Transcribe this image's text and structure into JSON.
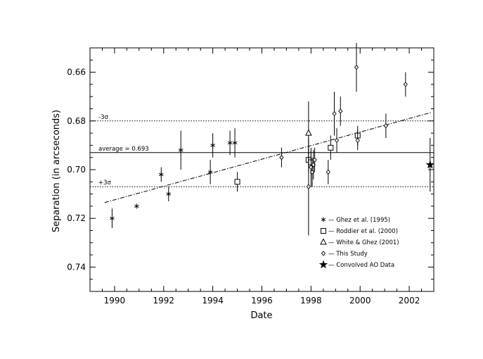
{
  "chart_data": {
    "type": "scatter",
    "xlabel": "Date",
    "ylabel": "Separation (in arcseconds)",
    "xlim": [
      1989,
      2003
    ],
    "ylim": [
      0.75,
      0.65
    ],
    "y_inverted": true,
    "x_ticks": [
      1990,
      1992,
      1994,
      1996,
      1998,
      2000,
      2002
    ],
    "x_tick_labels": [
      "1990",
      "1992",
      "1994",
      "1996",
      "1998",
      "2000",
      "2002"
    ],
    "y_ticks": [
      0.66,
      0.68,
      0.7,
      0.72,
      0.74
    ],
    "y_tick_labels": [
      "0.66",
      "0.68",
      "0.70",
      "0.72",
      "0.74"
    ],
    "grid": false,
    "legend_position": "bottom-right",
    "reference_lines": [
      {
        "name": "average",
        "label": "average = 0.693",
        "y": 0.693,
        "style": "solid"
      },
      {
        "name": "minus-3sigma",
        "label": "-3σ",
        "y": 0.68,
        "style": "dotted"
      },
      {
        "name": "plus-3sigma",
        "label": "+3σ",
        "y": 0.707,
        "style": "dotted"
      }
    ],
    "trend_line": {
      "style": "dash-dot",
      "x": [
        1989.6,
        2002.9
      ],
      "y": [
        0.7135,
        0.6765
      ]
    },
    "series": [
      {
        "name": "Ghez et al. (1995)",
        "marker": "asterisk",
        "points": [
          {
            "x": 1989.9,
            "y": 0.72,
            "err": 0.004
          },
          {
            "x": 1990.9,
            "y": 0.715,
            "err": 0.0
          },
          {
            "x": 1991.9,
            "y": 0.702,
            "err": 0.003
          },
          {
            "x": 1992.2,
            "y": 0.71,
            "err": 0.003
          },
          {
            "x": 1992.7,
            "y": 0.692,
            "err": 0.008
          },
          {
            "x": 1993.9,
            "y": 0.701,
            "err": 0.005
          },
          {
            "x": 1994.0,
            "y": 0.69,
            "err": 0.005
          },
          {
            "x": 1994.7,
            "y": 0.689,
            "err": 0.005
          },
          {
            "x": 1994.9,
            "y": 0.689,
            "err": 0.006
          }
        ]
      },
      {
        "name": "Roddier et al. (2000)",
        "marker": "square",
        "points": [
          {
            "x": 1995.0,
            "y": 0.705,
            "err": 0.004
          },
          {
            "x": 1997.9,
            "y": 0.696,
            "err": 0.005
          },
          {
            "x": 1998.0,
            "y": 0.697,
            "err": 0.005
          },
          {
            "x": 1998.8,
            "y": 0.691,
            "err": 0.005
          },
          {
            "x": 1999.9,
            "y": 0.686,
            "err": 0.004
          }
        ]
      },
      {
        "name": "White & Ghez (2001)",
        "marker": "triangle",
        "points": [
          {
            "x": 1997.9,
            "y": 0.685,
            "err": 0.013
          }
        ]
      },
      {
        "name": "This Study",
        "marker": "diamond",
        "points": [
          {
            "x": 1996.8,
            "y": 0.695,
            "err": 0.004
          },
          {
            "x": 1997.9,
            "y": 0.707,
            "err": 0.02
          },
          {
            "x": 1998.0,
            "y": 0.699,
            "err": 0.008
          },
          {
            "x": 1998.05,
            "y": 0.701,
            "err": 0.006
          },
          {
            "x": 1998.1,
            "y": 0.698,
            "err": 0.006
          },
          {
            "x": 1998.15,
            "y": 0.696,
            "err": 0.005
          },
          {
            "x": 1998.7,
            "y": 0.701,
            "err": 0.005
          },
          {
            "x": 1998.95,
            "y": 0.677,
            "err": 0.009
          },
          {
            "x": 1999.05,
            "y": 0.688,
            "err": 0.005
          },
          {
            "x": 1999.2,
            "y": 0.676,
            "err": 0.006
          },
          {
            "x": 1999.85,
            "y": 0.658,
            "err": 0.01
          },
          {
            "x": 1999.9,
            "y": 0.688,
            "err": 0.004
          },
          {
            "x": 2001.05,
            "y": 0.682,
            "err": 0.005
          },
          {
            "x": 2001.85,
            "y": 0.665,
            "err": 0.005
          }
        ]
      },
      {
        "name": "Convolved AO Data",
        "marker": "star",
        "points": [
          {
            "x": 2002.85,
            "y": 0.698,
            "err": 0.011
          }
        ]
      }
    ]
  }
}
